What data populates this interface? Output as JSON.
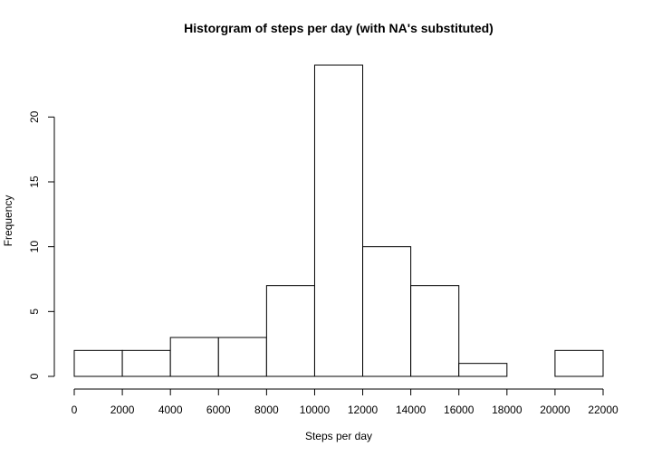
{
  "chart_data": {
    "type": "bar",
    "title": "Historgram of steps per day (with NA's substituted)",
    "xlabel": "Steps per day",
    "ylabel": "Frequency",
    "bins": [
      {
        "start": 0,
        "end": 2000,
        "count": 2
      },
      {
        "start": 2000,
        "end": 4000,
        "count": 2
      },
      {
        "start": 4000,
        "end": 6000,
        "count": 3
      },
      {
        "start": 6000,
        "end": 8000,
        "count": 3
      },
      {
        "start": 8000,
        "end": 10000,
        "count": 7
      },
      {
        "start": 10000,
        "end": 12000,
        "count": 24
      },
      {
        "start": 12000,
        "end": 14000,
        "count": 10
      },
      {
        "start": 14000,
        "end": 16000,
        "count": 7
      },
      {
        "start": 16000,
        "end": 18000,
        "count": 1
      },
      {
        "start": 18000,
        "end": 20000,
        "count": 0
      },
      {
        "start": 20000,
        "end": 22000,
        "count": 2
      }
    ],
    "xlim": [
      0,
      22000
    ],
    "ylim": [
      0,
      24
    ],
    "x_ticks": [
      "0",
      "2000",
      "4000",
      "6000",
      "8000",
      "10000",
      "12000",
      "14000",
      "16000",
      "18000",
      "20000",
      "22000"
    ],
    "y_ticks": [
      "0",
      "5",
      "10",
      "15",
      "20"
    ],
    "grid": false,
    "legend": "none"
  }
}
